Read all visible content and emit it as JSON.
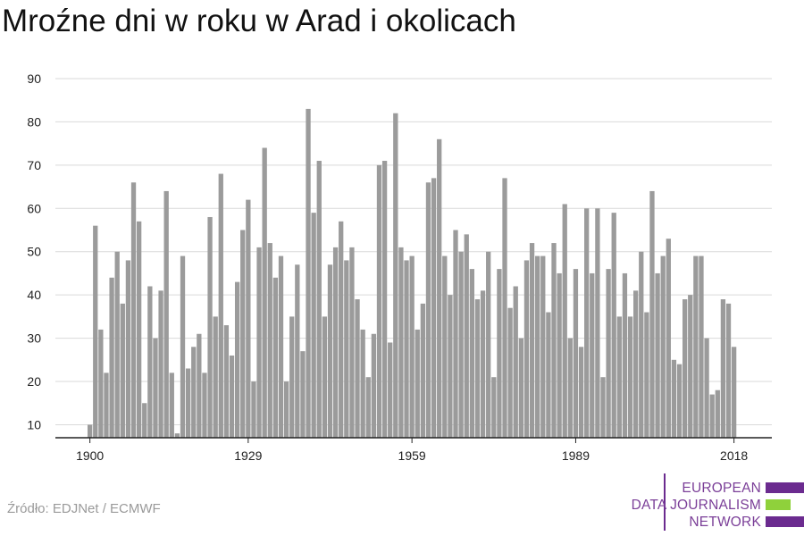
{
  "title": "Mroźne dni w roku w Arad i okolicach",
  "source": "Źródło: EDJNet / ECMWF",
  "logo": {
    "lines": [
      "EUROPEAN",
      "DATA JOURNALISM",
      "NETWORK"
    ],
    "text_color": "#7b3f98",
    "bar_colors": [
      "#6b2b8f",
      "#8fd13b",
      "#6b2b8f"
    ]
  },
  "colors": {
    "bar": "#9b9b9b",
    "grid": "#d9d9d9",
    "axis": "#222222"
  },
  "chart_data": {
    "type": "bar",
    "title": "Mroźne dni w roku w Arad i okolicach",
    "xlabel": "",
    "ylabel": "",
    "x_tick_labels": [
      "1900",
      "1929",
      "1959",
      "1989",
      "2018"
    ],
    "y_ticks": [
      10,
      20,
      30,
      40,
      50,
      60,
      70,
      80,
      90
    ],
    "ylim": [
      7,
      90
    ],
    "grid": true,
    "x": [
      1900,
      1901,
      1902,
      1903,
      1904,
      1905,
      1906,
      1907,
      1908,
      1909,
      1910,
      1911,
      1912,
      1913,
      1914,
      1915,
      1916,
      1917,
      1918,
      1919,
      1920,
      1921,
      1922,
      1923,
      1924,
      1925,
      1926,
      1927,
      1928,
      1929,
      1930,
      1931,
      1932,
      1933,
      1934,
      1935,
      1936,
      1937,
      1938,
      1939,
      1940,
      1941,
      1942,
      1943,
      1944,
      1945,
      1946,
      1947,
      1948,
      1949,
      1950,
      1951,
      1952,
      1953,
      1954,
      1955,
      1956,
      1957,
      1958,
      1959,
      1960,
      1961,
      1962,
      1963,
      1964,
      1965,
      1966,
      1967,
      1968,
      1969,
      1970,
      1971,
      1972,
      1973,
      1974,
      1975,
      1976,
      1977,
      1978,
      1979,
      1980,
      1981,
      1982,
      1983,
      1984,
      1985,
      1986,
      1987,
      1988,
      1989,
      1990,
      1991,
      1992,
      1993,
      1994,
      1995,
      1996,
      1997,
      1998,
      1999,
      2000,
      2001,
      2002,
      2003,
      2004,
      2005,
      2006,
      2007,
      2008,
      2009,
      2010,
      2011,
      2012,
      2013,
      2014,
      2015,
      2016,
      2017,
      2018
    ],
    "values": [
      10,
      56,
      32,
      22,
      44,
      50,
      38,
      48,
      66,
      57,
      15,
      42,
      30,
      41,
      64,
      22,
      8,
      49,
      23,
      28,
      31,
      22,
      58,
      35,
      68,
      33,
      26,
      43,
      55,
      62,
      20,
      51,
      74,
      52,
      44,
      49,
      20,
      35,
      47,
      27,
      83,
      59,
      71,
      35,
      47,
      51,
      57,
      48,
      51,
      39,
      32,
      21,
      31,
      70,
      71,
      29,
      82,
      51,
      48,
      49,
      32,
      38,
      66,
      67,
      76,
      49,
      40,
      55,
      50,
      54,
      46,
      39,
      41,
      50,
      21,
      46,
      67,
      37,
      42,
      30,
      48,
      52,
      49,
      49,
      36,
      52,
      45,
      61,
      30,
      46,
      28,
      60,
      45,
      60,
      21,
      46,
      59,
      35,
      45,
      35,
      41,
      50,
      36,
      64,
      45,
      49,
      53,
      25,
      24,
      39,
      40,
      49,
      49,
      30,
      17,
      18,
      39,
      38,
      28
    ]
  }
}
